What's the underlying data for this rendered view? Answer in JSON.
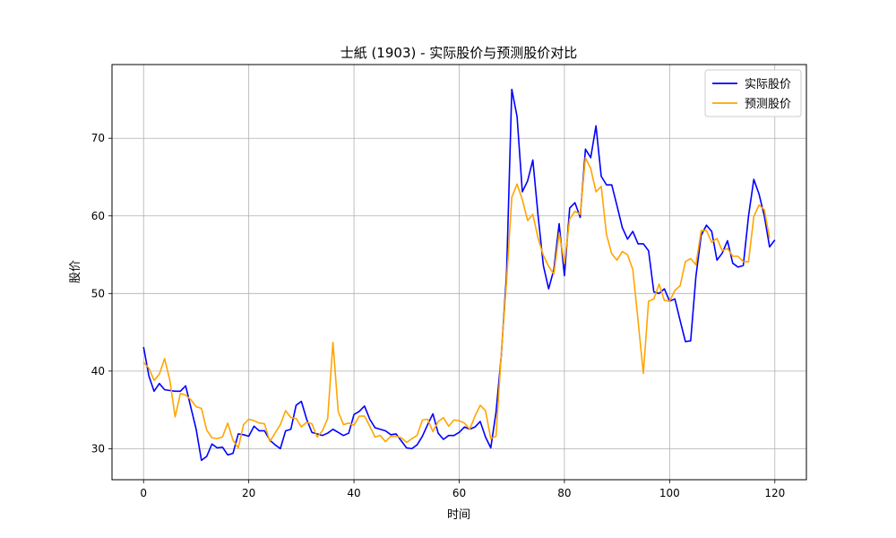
{
  "chart_data": {
    "type": "line",
    "title": "士紙 (1903) - 实际股价与预测股价对比",
    "xlabel": "时间",
    "ylabel": "股价",
    "xlim": [
      -6,
      126
    ],
    "ylim": [
      26.0,
      79.5
    ],
    "xticks": [
      0,
      20,
      40,
      60,
      80,
      100,
      120
    ],
    "yticks": [
      30,
      40,
      50,
      60,
      70
    ],
    "grid": true,
    "legend_position": "top-right",
    "series": [
      {
        "name": "实际股价",
        "color": "#0000ff",
        "x_start": 0,
        "values": [
          43.1,
          39.4,
          37.4,
          38.4,
          37.6,
          37.5,
          37.4,
          37.4,
          38.1,
          35.3,
          32.5,
          28.5,
          29.0,
          30.6,
          30.1,
          30.2,
          29.2,
          29.4,
          31.9,
          31.8,
          31.6,
          32.9,
          32.3,
          32.3,
          31.1,
          30.5,
          30.0,
          32.3,
          32.5,
          35.6,
          36.1,
          33.8,
          32.1,
          31.9,
          31.7,
          32.0,
          32.5,
          32.1,
          31.7,
          32.0,
          34.4,
          34.8,
          35.5,
          33.8,
          32.7,
          32.5,
          32.3,
          31.8,
          31.9,
          31.0,
          30.1,
          30.0,
          30.5,
          31.6,
          33.1,
          34.5,
          32.0,
          31.2,
          31.7,
          31.7,
          32.1,
          32.8,
          32.5,
          32.8,
          33.5,
          31.5,
          30.1,
          34.7,
          42.0,
          52.5,
          76.3,
          72.8,
          63.1,
          64.5,
          67.2,
          60.0,
          53.6,
          50.6,
          53.1,
          59.0,
          52.3,
          61.0,
          61.7,
          59.8,
          68.6,
          67.5,
          71.6,
          65.1,
          64.0,
          64.0,
          61.3,
          58.5,
          57.0,
          58.0,
          56.4,
          56.4,
          55.5,
          50.2,
          50.0,
          50.6,
          49.0,
          49.3,
          46.5,
          43.8,
          43.9,
          52.2,
          57.5,
          58.8,
          58.0,
          54.3,
          55.2,
          56.8,
          53.9,
          53.4,
          53.6,
          60.0,
          64.7,
          62.8,
          60.0,
          56.0,
          56.9
        ]
      },
      {
        "name": "预测股价",
        "color": "#ffa500",
        "x_start": 0,
        "values": [
          41.1,
          40.4,
          38.8,
          39.6,
          41.6,
          38.8,
          34.1,
          37.1,
          36.9,
          36.3,
          35.4,
          35.2,
          32.4,
          31.4,
          31.3,
          31.5,
          33.3,
          31.1,
          30.1,
          33.1,
          33.8,
          33.6,
          33.3,
          33.2,
          30.9,
          32.0,
          33.1,
          34.9,
          34.0,
          33.9,
          32.8,
          33.4,
          33.2,
          31.5,
          32.3,
          33.9,
          43.7,
          34.8,
          33.1,
          33.3,
          33.0,
          34.2,
          34.2,
          32.9,
          31.5,
          31.7,
          30.9,
          31.6,
          31.6,
          31.4,
          30.8,
          31.3,
          31.7,
          33.7,
          33.8,
          32.2,
          33.5,
          34.0,
          32.9,
          33.7,
          33.6,
          33.3,
          32.5,
          34.2,
          35.6,
          34.9,
          31.3,
          31.6,
          42.2,
          51.5,
          62.4,
          64.1,
          62.1,
          59.4,
          60.2,
          57.1,
          54.9,
          53.5,
          52.5,
          57.8,
          53.9,
          59.6,
          60.6,
          60.2,
          67.5,
          66.1,
          63.1,
          63.8,
          57.6,
          55.1,
          54.3,
          55.4,
          55.0,
          53.1,
          46.5,
          39.7,
          49.0,
          49.3,
          51.2,
          49.1,
          49.0,
          50.4,
          51.0,
          54.1,
          54.5,
          53.7,
          58.1,
          58.1,
          56.6,
          57.1,
          55.5,
          55.8,
          54.8,
          54.8,
          54.1,
          54.1,
          59.9,
          61.4,
          60.8,
          57.1
        ]
      }
    ]
  }
}
